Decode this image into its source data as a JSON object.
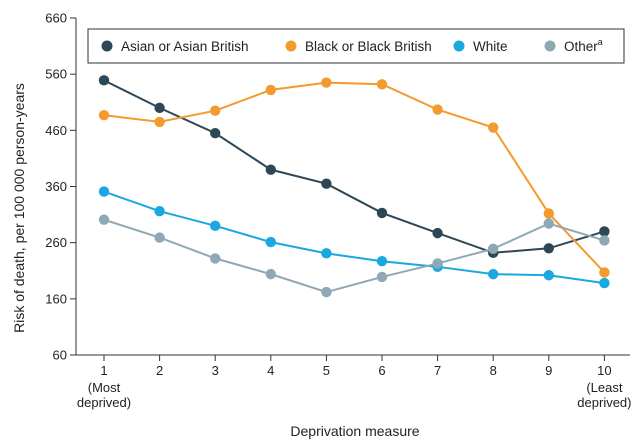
{
  "chart_data": {
    "type": "line",
    "xlabel": "Deprivation measure",
    "ylabel": "Risk of death, per 100 000 person-years",
    "ylim": [
      60,
      660
    ],
    "yticks": [
      60,
      160,
      260,
      360,
      460,
      560,
      660
    ],
    "x": [
      1,
      2,
      3,
      4,
      5,
      6,
      7,
      8,
      9,
      10
    ],
    "xtick_labels": [
      "1",
      "2",
      "3",
      "4",
      "5",
      "6",
      "7",
      "8",
      "9",
      "10"
    ],
    "xtick_sublabels": {
      "first": [
        "(Most",
        "deprived)"
      ],
      "last": [
        "(Least",
        "deprived)"
      ]
    },
    "grid": false,
    "legend": "top",
    "series": [
      {
        "name": "Asian or Asian British",
        "color": "#2e4756",
        "values": [
          549,
          500,
          455,
          390,
          365,
          313,
          277,
          242,
          250,
          280
        ]
      },
      {
        "name": "Black or Black British",
        "color": "#f39b2f",
        "values": [
          487,
          475,
          495,
          532,
          545,
          542,
          497,
          465,
          312,
          207
        ]
      },
      {
        "name": "White",
        "color": "#19a8e0",
        "values": [
          351,
          316,
          290,
          261,
          241,
          227,
          217,
          204,
          202,
          188
        ]
      },
      {
        "name": "Other",
        "name_superscript": "a",
        "color": "#8fa9b4",
        "values": [
          301,
          269,
          232,
          204,
          172,
          199,
          223,
          249,
          294,
          264
        ]
      }
    ]
  }
}
